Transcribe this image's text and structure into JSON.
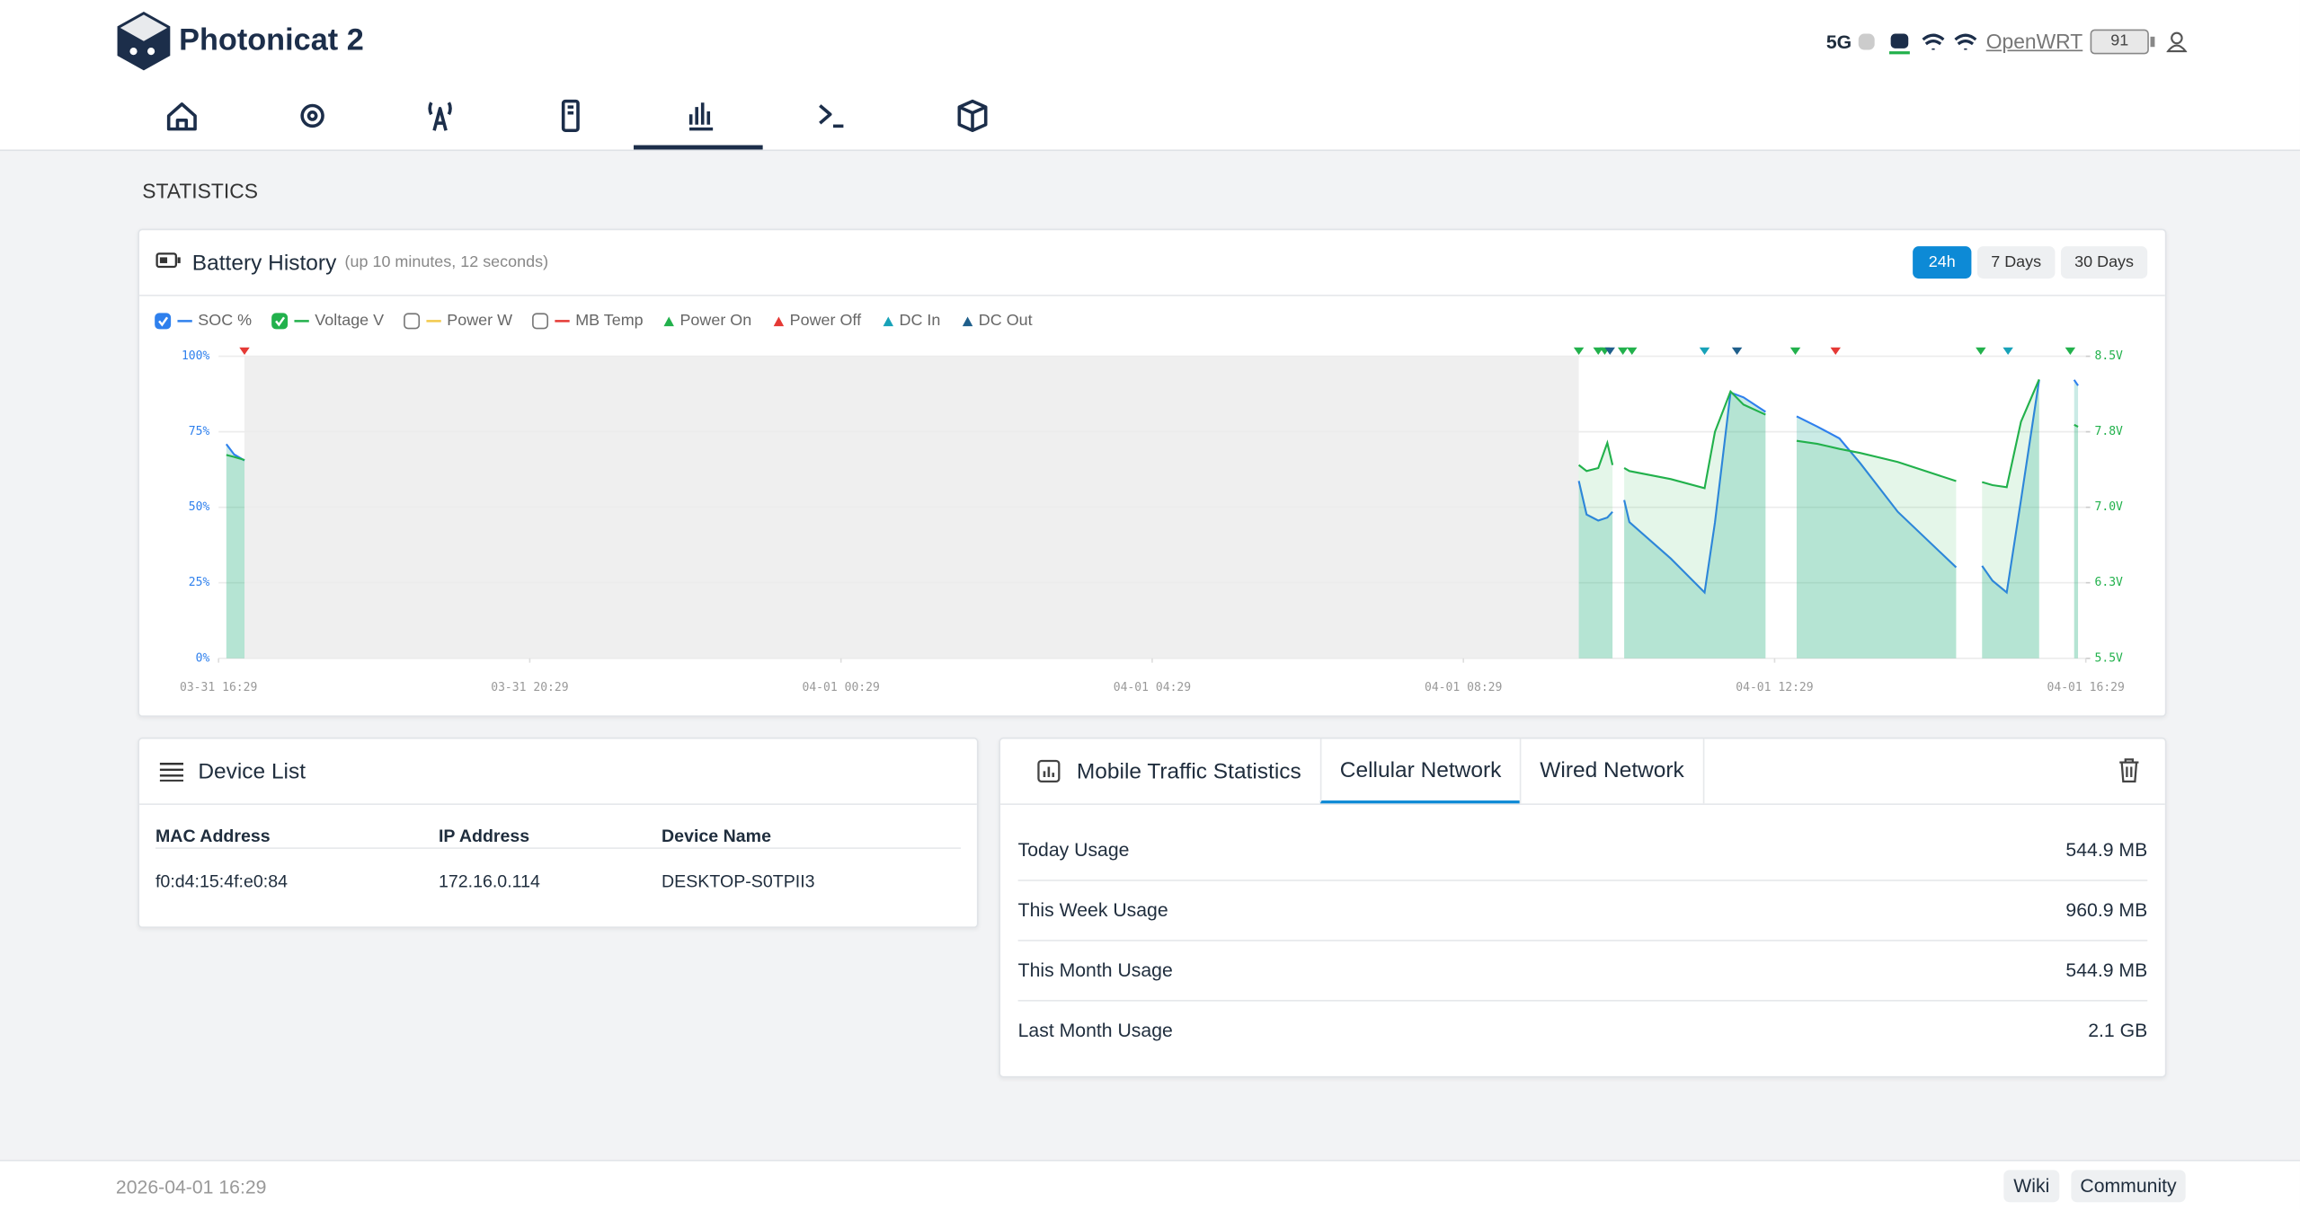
{
  "header": {
    "brand": "Photonicat 2",
    "network": "5G",
    "hostname": "OpenWRT",
    "battery": "91"
  },
  "page_title": "STATISTICS",
  "chart_data": {
    "type": "line",
    "title": "Battery History",
    "subtitle": "(up 10 minutes, 12 seconds)",
    "ranges": [
      "24h",
      "7 Days",
      "30 Days"
    ],
    "active_range": 0,
    "x": [
      "03-31 16:35",
      "03-31 16:41",
      "03-31 16:49",
      "03-31 17:00",
      "04-01 09:58",
      "04-01 10:04",
      "04-01 10:13",
      "04-01 10:20",
      "04-01 10:24",
      "04-01 10:27",
      "04-01 10:33",
      "04-01 10:37",
      "04-01 11:09",
      "04-01 11:35",
      "04-01 11:43",
      "04-01 11:55",
      "04-01 12:05",
      "04-01 12:22",
      "04-01 12:30",
      "04-01 12:46",
      "04-01 13:02",
      "04-01 13:19",
      "04-01 13:35",
      "04-01 14:04",
      "04-01 14:49",
      "04-01 14:55",
      "04-01 15:09",
      "04-01 15:17",
      "04-01 15:28",
      "04-01 15:39",
      "04-01 15:53",
      "04-01 16:00",
      "04-01 16:20",
      "04-01 16:23"
    ],
    "xlim": [
      "03-31 16:29",
      "04-01 16:29"
    ],
    "xticks": [
      "03-31 16:29",
      "03-31 20:29",
      "04-01 00:29",
      "04-01 04:29",
      "04-01 08:29",
      "04-01 12:29",
      "04-01 16:29"
    ],
    "ylim": [
      0,
      100
    ],
    "yticks": [
      {
        "value": 0,
        "label": "0%"
      },
      {
        "value": 25,
        "label": "25%"
      },
      {
        "value": 50,
        "label": "50%"
      },
      {
        "value": 75,
        "label": "75%"
      },
      {
        "value": 100,
        "label": "100%"
      }
    ],
    "y2lim": [
      5.5,
      8.5
    ],
    "y2ticks": [
      {
        "value": 5.5,
        "label": "5.5V"
      },
      {
        "value": 6.25,
        "label": "6.3V"
      },
      {
        "value": 7,
        "label": "7.0V"
      },
      {
        "value": 7.75,
        "label": "7.8V"
      },
      {
        "value": 8.5,
        "label": "8.5V"
      }
    ],
    "grid": true,
    "series": [
      {
        "name": "SOC %",
        "color": "#2f80ed",
        "checked": true,
        "values": [
          70.9,
          67.5,
          65.5,
          null,
          58.7,
          47.6,
          45.6,
          46.6,
          48.5,
          null,
          52.4,
          45.1,
          33,
          21.8,
          45,
          88,
          86.4,
          81.6,
          null,
          80.1,
          76.7,
          72.8,
          64.6,
          48.5,
          30.1,
          null,
          30.6,
          25.7,
          21.8,
          52.4,
          92.2,
          null,
          92.2,
          90.3
        ]
      },
      {
        "name": "Voltage V",
        "color": "#22b14c",
        "checked": true,
        "axis": "y2",
        "values": [
          7.52,
          7.5,
          7.47,
          null,
          7.42,
          7.36,
          7.39,
          7.64,
          7.42,
          null,
          7.39,
          7.36,
          7.28,
          7.19,
          7.75,
          8.15,
          8.02,
          7.92,
          null,
          7.66,
          7.63,
          7.58,
          7.54,
          7.45,
          7.26,
          null,
          7.25,
          7.22,
          7.2,
          7.85,
          8.27,
          null,
          7.82,
          7.8
        ]
      },
      {
        "name": "Power W",
        "color": "#f2c94c",
        "checked": false
      },
      {
        "name": "MB Temp",
        "color": "#e53935",
        "checked": false
      }
    ],
    "events": [
      {
        "name": "Power On",
        "color": "#22b14c",
        "x": [
          "04-01 09:58",
          "04-01 10:13",
          "04-01 10:18",
          "04-01 10:32",
          "04-01 10:39",
          "04-01 12:45",
          "04-01 15:08",
          "04-01 16:17"
        ]
      },
      {
        "name": "Power Off",
        "color": "#e53935",
        "x": [
          "03-31 16:49",
          "04-01 13:16"
        ]
      },
      {
        "name": "DC In",
        "color": "#17a2b8",
        "x": [
          "04-01 11:35",
          "04-01 15:29"
        ]
      },
      {
        "name": "DC Out",
        "color": "#1f5f8b",
        "x": [
          "04-01 10:22",
          "04-01 12:00"
        ]
      }
    ]
  },
  "device_list": {
    "title": "Device List",
    "columns": [
      "MAC Address",
      "IP Address",
      "Device Name"
    ],
    "rows": [
      [
        "f0:d4:15:4f:e0:84",
        "172.16.0.114",
        "DESKTOP-S0TPII3"
      ]
    ]
  },
  "traffic": {
    "title": "Mobile Traffic Statistics",
    "tabs": [
      "Cellular Network",
      "Wired Network"
    ],
    "active_tab": 0,
    "rows": [
      [
        "Today Usage",
        "544.9 MB"
      ],
      [
        "This Week Usage",
        "960.9 MB"
      ],
      [
        "This Month Usage",
        "544.9 MB"
      ],
      [
        "Last Month Usage",
        "2.1 GB"
      ]
    ]
  },
  "footer": {
    "timestamp": "2026-04-01 16:29",
    "links": [
      "Wiki",
      "Community"
    ]
  }
}
